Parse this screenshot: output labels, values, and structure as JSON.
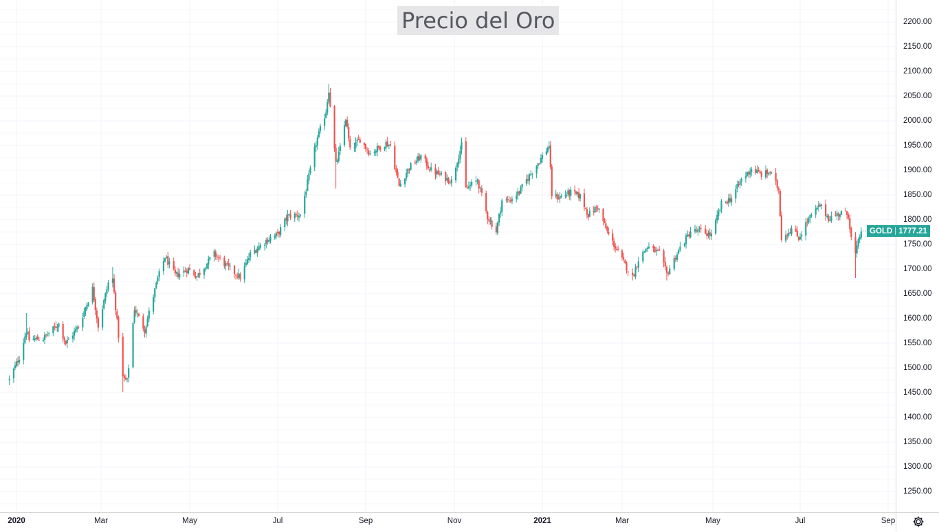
{
  "title": "Precio del Oro",
  "symbol": "GOLD",
  "last_price": "1777.21",
  "colors": {
    "up": "#26a69a",
    "down": "#ef5350",
    "grid": "#f0f3fa",
    "tag": "#26a69a"
  },
  "price_axis_labels": [
    "2200.00",
    "2150.00",
    "2100.00",
    "2050.00",
    "2000.00",
    "1950.00",
    "1900.00",
    "1850.00",
    "1800.00",
    "1750.00",
    "1700.00",
    "1650.00",
    "1600.00",
    "1550.00",
    "1500.00",
    "1450.00",
    "1400.00",
    "1350.00",
    "1300.00",
    "1250.00"
  ],
  "time_axis_labels": [
    "2020",
    "Mar",
    "May",
    "Jul",
    "Sep",
    "Nov",
    "2021",
    "Mar",
    "May",
    "Jul",
    "Sep"
  ],
  "settings_icon": "gear-icon",
  "chart_data": {
    "type": "candlestick",
    "title": "Precio del Oro",
    "series_name": "GOLD",
    "x_start": "2020-01-01",
    "x_end": "2021-09-15",
    "ylim": [
      1220,
      2225
    ],
    "grid": true,
    "last_value": 1777.21,
    "x_ticks": [
      {
        "label": "2020",
        "date": "2020-01-01"
      },
      {
        "label": "Mar",
        "date": "2020-03-01"
      },
      {
        "label": "May",
        "date": "2020-05-01"
      },
      {
        "label": "Jul",
        "date": "2020-07-01"
      },
      {
        "label": "Sep",
        "date": "2020-09-01"
      },
      {
        "label": "Nov",
        "date": "2020-11-01"
      },
      {
        "label": "2021",
        "date": "2021-01-01"
      },
      {
        "label": "Mar",
        "date": "2021-03-01"
      },
      {
        "label": "May",
        "date": "2021-05-01"
      },
      {
        "label": "Jul",
        "date": "2021-07-01"
      },
      {
        "label": "Sep",
        "date": "2021-09-01"
      }
    ],
    "close_path": [
      [
        "2019-12-27",
        1476
      ],
      [
        "2020-01-03",
        1522
      ],
      [
        "2020-01-08",
        1575
      ],
      [
        "2020-01-10",
        1557
      ],
      [
        "2020-01-20",
        1560
      ],
      [
        "2020-01-31",
        1589
      ],
      [
        "2020-02-05",
        1550
      ],
      [
        "2020-02-14",
        1584
      ],
      [
        "2020-02-24",
        1660
      ],
      [
        "2020-02-28",
        1585
      ],
      [
        "2020-03-06",
        1672
      ],
      [
        "2020-03-09",
        1680
      ],
      [
        "2020-03-16",
        1480
      ],
      [
        "2020-03-19",
        1473
      ],
      [
        "2020-03-24",
        1620
      ],
      [
        "2020-03-31",
        1577
      ],
      [
        "2020-04-09",
        1680
      ],
      [
        "2020-04-14",
        1725
      ],
      [
        "2020-04-21",
        1687
      ],
      [
        "2020-04-30",
        1700
      ],
      [
        "2020-05-06",
        1685
      ],
      [
        "2020-05-18",
        1731
      ],
      [
        "2020-05-27",
        1705
      ],
      [
        "2020-06-05",
        1683
      ],
      [
        "2020-06-12",
        1730
      ],
      [
        "2020-06-24",
        1760
      ],
      [
        "2020-07-01",
        1770
      ],
      [
        "2020-07-08",
        1807
      ],
      [
        "2020-07-17",
        1810
      ],
      [
        "2020-07-24",
        1900
      ],
      [
        "2020-07-28",
        1955
      ],
      [
        "2020-08-04",
        2019
      ],
      [
        "2020-08-06",
        2063
      ],
      [
        "2020-08-11",
        1911
      ],
      [
        "2020-08-14",
        1944
      ],
      [
        "2020-08-18",
        2006
      ],
      [
        "2020-08-21",
        1940
      ],
      [
        "2020-08-28",
        1963
      ],
      [
        "2020-09-04",
        1934
      ],
      [
        "2020-09-15",
        1955
      ],
      [
        "2020-09-18",
        1950
      ],
      [
        "2020-09-24",
        1868
      ],
      [
        "2020-10-01",
        1906
      ],
      [
        "2020-10-09",
        1928
      ],
      [
        "2020-10-16",
        1900
      ],
      [
        "2020-10-30",
        1878
      ],
      [
        "2020-11-06",
        1951
      ],
      [
        "2020-11-09",
        1862
      ],
      [
        "2020-11-17",
        1880
      ],
      [
        "2020-11-24",
        1806
      ],
      [
        "2020-11-30",
        1776
      ],
      [
        "2020-12-04",
        1839
      ],
      [
        "2020-12-09",
        1838
      ],
      [
        "2020-12-16",
        1856
      ],
      [
        "2020-12-21",
        1880
      ],
      [
        "2021-01-06",
        1950
      ],
      [
        "2021-01-08",
        1850
      ],
      [
        "2021-01-13",
        1845
      ],
      [
        "2021-01-22",
        1855
      ],
      [
        "2021-01-29",
        1847
      ],
      [
        "2021-02-04",
        1810
      ],
      [
        "2021-02-11",
        1826
      ],
      [
        "2021-02-18",
        1775
      ],
      [
        "2021-02-26",
        1734
      ],
      [
        "2021-03-08",
        1683
      ],
      [
        "2021-03-12",
        1720
      ],
      [
        "2021-03-18",
        1745
      ],
      [
        "2021-03-26",
        1732
      ],
      [
        "2021-03-31",
        1690
      ],
      [
        "2021-04-09",
        1743
      ],
      [
        "2021-04-16",
        1776
      ],
      [
        "2021-04-23",
        1777
      ],
      [
        "2021-04-30",
        1768
      ],
      [
        "2021-05-07",
        1831
      ],
      [
        "2021-05-14",
        1844
      ],
      [
        "2021-05-21",
        1881
      ],
      [
        "2021-05-28",
        1903
      ],
      [
        "2021-06-04",
        1891
      ],
      [
        "2021-06-10",
        1896
      ],
      [
        "2021-06-16",
        1861
      ],
      [
        "2021-06-18",
        1764
      ],
      [
        "2021-06-25",
        1781
      ],
      [
        "2021-06-30",
        1763
      ],
      [
        "2021-07-06",
        1797
      ],
      [
        "2021-07-15",
        1829
      ],
      [
        "2021-07-21",
        1803
      ],
      [
        "2021-07-30",
        1814
      ],
      [
        "2021-08-04",
        1810
      ],
      [
        "2021-08-06",
        1763
      ],
      [
        "2021-08-09",
        1729
      ],
      [
        "2021-08-13",
        1779
      ]
    ]
  }
}
